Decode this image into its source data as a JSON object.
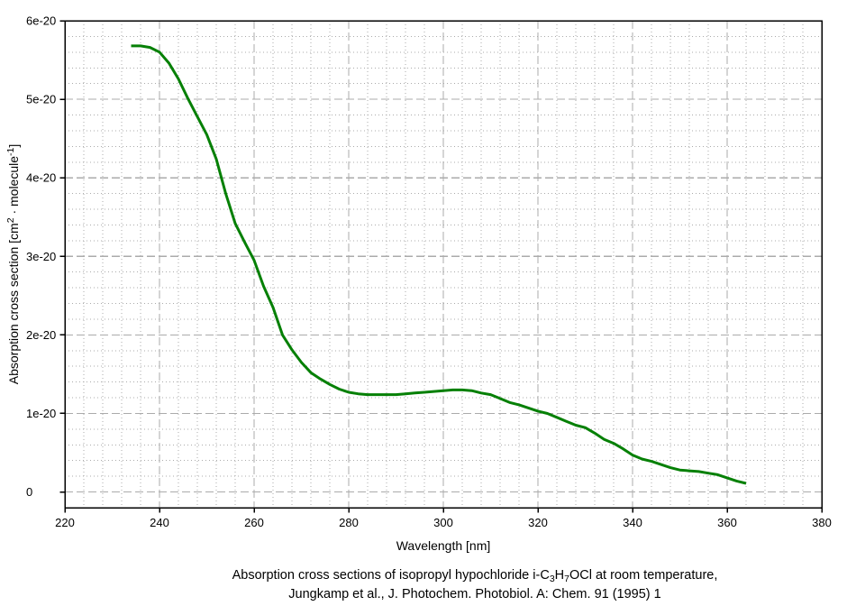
{
  "colors": {
    "background": "#ffffff",
    "curve": "#068006",
    "grid_major": "#ababab",
    "grid_minor": "#ababab",
    "axis": "#000000",
    "text": "#000000"
  },
  "chart_data": {
    "type": "line",
    "title": "",
    "xlabel": "Wavelength [nm]",
    "ylabel": "Absorption cross section [cm^2 · molecule^-1]",
    "ylabel_parts": {
      "p1": "Absorption cross section [cm",
      "sup1": "2",
      "p2": " · molecule",
      "sup2": "-1",
      "p3": "]"
    },
    "x_axis": {
      "min": 220,
      "max": 380,
      "major_step": 20,
      "minor_step": 4,
      "tick_values": [
        220,
        240,
        260,
        280,
        300,
        320,
        340,
        360,
        380
      ],
      "tick_labels": [
        "220",
        "240",
        "260",
        "280",
        "300",
        "320",
        "340",
        "360",
        "380"
      ]
    },
    "y_axis": {
      "min": -0.2,
      "max": 6.0,
      "major_step": 1,
      "minor_step": 0.2,
      "scale": "1e-20",
      "units": "cm^2 / molecule",
      "tick_values": [
        0,
        1,
        2,
        3,
        4,
        5,
        6
      ],
      "tick_labels": [
        "0",
        "1e-20",
        "2e-20",
        "3e-20",
        "4e-20",
        "5e-20",
        "6e-20"
      ]
    },
    "grid": {
      "major": true,
      "minor": true
    },
    "legend": "none",
    "series": [
      {
        "name": "i-C3H7OCl absorption cross section",
        "color": "#068006",
        "x": [
          234,
          236,
          238,
          240,
          242,
          244,
          246,
          248,
          250,
          252,
          254,
          256,
          258,
          260,
          262,
          264,
          266,
          268,
          270,
          272,
          274,
          276,
          278,
          280,
          282,
          284,
          286,
          288,
          290,
          292,
          294,
          296,
          298,
          300,
          302,
          304,
          306,
          308,
          310,
          312,
          314,
          316,
          318,
          320,
          322,
          324,
          326,
          328,
          330,
          332,
          334,
          336,
          338,
          340,
          342,
          344,
          346,
          348,
          350,
          352,
          354,
          356,
          358,
          360,
          362,
          364
        ],
        "y_1e20": [
          5.68,
          5.68,
          5.66,
          5.6,
          5.46,
          5.26,
          5.01,
          4.78,
          4.55,
          4.24,
          3.8,
          3.42,
          3.18,
          2.95,
          2.62,
          2.35,
          2.0,
          1.81,
          1.65,
          1.52,
          1.44,
          1.37,
          1.31,
          1.27,
          1.25,
          1.24,
          1.24,
          1.24,
          1.24,
          1.25,
          1.26,
          1.27,
          1.28,
          1.29,
          1.3,
          1.3,
          1.29,
          1.26,
          1.24,
          1.19,
          1.14,
          1.11,
          1.07,
          1.03,
          1.0,
          0.95,
          0.9,
          0.85,
          0.82,
          0.75,
          0.67,
          0.62,
          0.55,
          0.47,
          0.42,
          0.39,
          0.35,
          0.31,
          0.28,
          0.27,
          0.26,
          0.24,
          0.22,
          0.18,
          0.14,
          0.11
        ]
      }
    ],
    "caption_line1": "Absorption cross sections of isopropyl hypochloride i-C3H7OCl at room temperature,",
    "caption_line1_parts": {
      "p1": "Absorption cross sections of isopropyl hypochloride i-C",
      "sub1": "3",
      "p2": "H",
      "sub2": "7",
      "p3": "OCl at room temperature,"
    },
    "caption_line2": "Jungkamp et al., J. Photochem. Photobiol. A: Chem. 91 (1995) 1"
  }
}
